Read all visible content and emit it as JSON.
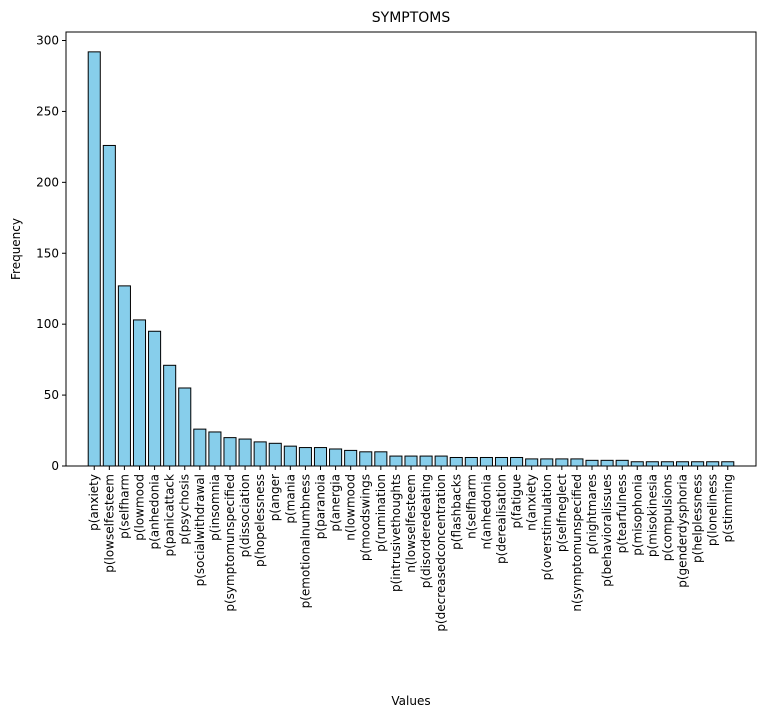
{
  "chart_data": {
    "type": "bar",
    "title": "SYMPTOMS",
    "xlabel": "Values",
    "ylabel": "Frequency",
    "ylim": [
      0,
      306
    ],
    "yticks": [
      0,
      50,
      100,
      150,
      200,
      250,
      300
    ],
    "bar_color": "#87CEEB",
    "edge_color": "#000000",
    "categories": [
      "p(anxiety",
      "p(lowselfesteem",
      "p(selfharm",
      "p(lowmood",
      "p(anhedonia",
      "p(panicattack",
      "p(psychosis",
      "p(socialwithdrawal",
      "p(insomnia",
      "p(symptomunspecified",
      "p(dissociation",
      "p(hopelessness",
      "p(anger",
      "p(mania",
      "p(emotionalnumbness",
      "p(paranoia",
      "p(anergia",
      "n(lowmood",
      "p(moodswings",
      "p(rumination",
      "p(intrusivethoughts",
      "n(lowselfesteem",
      "p(disorderedeating",
      "p(decreasedconcentration",
      "p(flashbacks",
      "n(selfharm",
      "n(anhedonia",
      "p(derealisation",
      "p(fatigue",
      "n(anxiety",
      "p(overstimulation",
      "p(selfneglect",
      "n(symptomunspecified",
      "p(nightmares",
      "p(behavioralissues",
      "p(tearfulness",
      "p(misophonia",
      "p(misokinesia",
      "p(compulsions",
      "p(genderdysphoria",
      "p(helplessness",
      "p(loneliness",
      "p(stimming"
    ],
    "values": [
      292,
      226,
      127,
      103,
      95,
      71,
      55,
      26,
      24,
      20,
      19,
      17,
      16,
      14,
      13,
      13,
      12,
      11,
      10,
      10,
      7,
      7,
      7,
      7,
      6,
      6,
      6,
      6,
      6,
      5,
      5,
      5,
      5,
      4,
      4,
      4,
      3,
      3,
      3,
      3,
      3,
      3,
      3
    ]
  }
}
